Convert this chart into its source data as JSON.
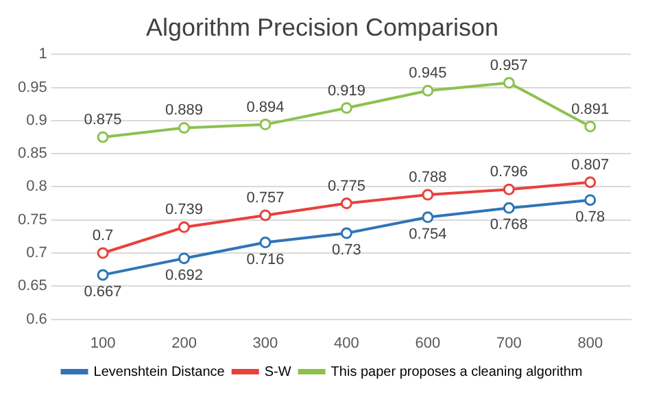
{
  "chart_data": {
    "type": "line",
    "title": "Algorithm Precision Comparison",
    "categories": [
      "100",
      "200",
      "300",
      "400",
      "600",
      "700",
      "800"
    ],
    "series": [
      {
        "name": "Levenshtein Distance",
        "color": "#2e75b6",
        "values": [
          0.667,
          0.692,
          0.716,
          0.73,
          0.754,
          0.768,
          0.78
        ]
      },
      {
        "name": "S-W",
        "color": "#e8413c",
        "values": [
          0.7,
          0.739,
          0.757,
          0.775,
          0.788,
          0.796,
          0.807
        ]
      },
      {
        "name": "This paper proposes a cleaning algorithm",
        "color": "#8dc14f",
        "values": [
          0.875,
          0.889,
          0.894,
          0.919,
          0.945,
          0.957,
          0.891
        ]
      }
    ],
    "ylim": [
      0.6,
      1
    ],
    "yticks": [
      0.6,
      0.65,
      0.7,
      0.75,
      0.8,
      0.85,
      0.9,
      0.95,
      1
    ],
    "grid": "y",
    "legend": "bottom",
    "marker": "circle",
    "line_style": "solid",
    "data_labels": true
  }
}
